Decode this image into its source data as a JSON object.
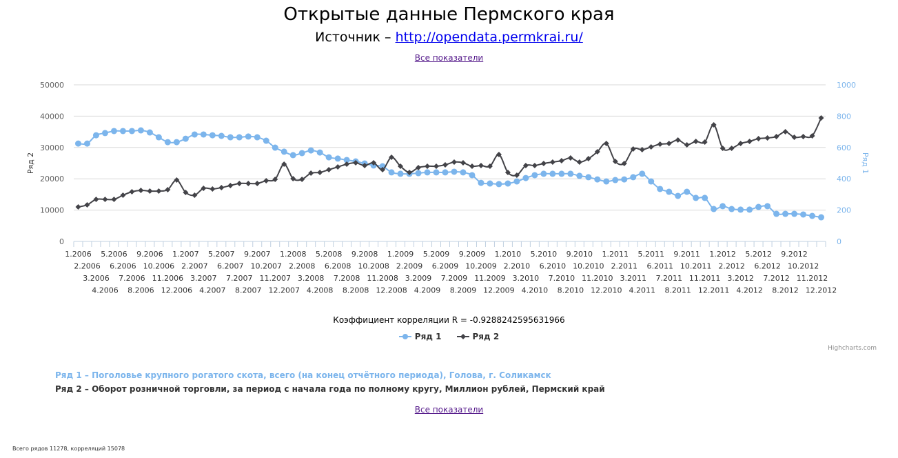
{
  "page": {
    "title": "Открытые данные Пермского края",
    "source_label": "Источник – ",
    "source_link": "http://opendata.permkrai.ru/",
    "all_indicators_top": "Все показатели",
    "all_indicators_bottom": "Все показатели",
    "correlation_text": "Коэффициент корреляции R = -0.9288242595631966",
    "credits": "Highcharts.com",
    "series1_description": "Ряд 1 – Поголовье крупного рогатого скота, всего (на конец отчётного периода), Голова, г. Соликамск",
    "series2_description": "Ряд 2 – Оборот розничной торговли, за период с начала года по полному кругу, Миллион рублей, Пермский край",
    "footer": "Всего рядов 11278, корреляций 15078"
  },
  "colors": {
    "series1": "#7cb5ec",
    "series2": "#434348",
    "grid": "#d8d8d8",
    "axis_labels": "#606060",
    "right_axis_labels": "#7cb5ec"
  },
  "chart_data": {
    "type": "line",
    "title": "",
    "xlabel": "",
    "ylabel": "Ряд 2",
    "ylabel_right": "Ряд 1",
    "ylim": [
      0,
      50000
    ],
    "ylim_right": [
      0,
      1000
    ],
    "yticks": [
      0,
      10000,
      20000,
      30000,
      40000,
      50000
    ],
    "yticks_right": [
      0,
      200,
      400,
      600,
      800,
      1000
    ],
    "grid": true,
    "legend_position": "bottom",
    "categories": [
      "1.2006",
      "2.2006",
      "3.2006",
      "4.2006",
      "5.2006",
      "6.2006",
      "7.2006",
      "8.2006",
      "9.2006",
      "10.2006",
      "11.2006",
      "12.2006",
      "1.2007",
      "2.2007",
      "3.2007",
      "4.2007",
      "5.2007",
      "6.2007",
      "7.2007",
      "8.2007",
      "9.2007",
      "10.2007",
      "11.2007",
      "12.2007",
      "1.2008",
      "2.2008",
      "3.2008",
      "4.2008",
      "5.2008",
      "6.2008",
      "7.2008",
      "8.2008",
      "9.2008",
      "10.2008",
      "11.2008",
      "12.2008",
      "1.2009",
      "2.2009",
      "3.2009",
      "4.2009",
      "5.2009",
      "6.2009",
      "7.2009",
      "8.2009",
      "9.2009",
      "10.2009",
      "11.2009",
      "12.2009",
      "1.2010",
      "2.2010",
      "3.2010",
      "4.2010",
      "5.2010",
      "6.2010",
      "7.2010",
      "8.2010",
      "9.2010",
      "10.2010",
      "11.2010",
      "12.2010",
      "1.2011",
      "2.2011",
      "3.2011",
      "4.2011",
      "5.2011",
      "6.2011",
      "7.2011",
      "8.2011",
      "9.2011",
      "10.2011",
      "11.2011",
      "12.2011",
      "1.2012",
      "2.2012",
      "3.2012",
      "4.2012",
      "5.2012",
      "6.2012",
      "7.2012",
      "8.2012",
      "9.2012",
      "10.2012",
      "11.2012",
      "12.2012"
    ],
    "series": [
      {
        "name": "Ряд 1",
        "axis": "right",
        "marker": "circle",
        "values": [
          625,
          625,
          678,
          692,
          705,
          705,
          705,
          709,
          696,
          665,
          634,
          634,
          656,
          683,
          683,
          678,
          674,
          665,
          665,
          670,
          665,
          643,
          599,
          573,
          551,
          564,
          581,
          568,
          537,
          529,
          520,
          511,
          498,
          485,
          480,
          441,
          432,
          432,
          436,
          441,
          441,
          441,
          445,
          441,
          423,
          374,
          370,
          366,
          370,
          383,
          405,
          423,
          432,
          432,
          432,
          432,
          419,
          410,
          396,
          383,
          392,
          396,
          410,
          432,
          383,
          335,
          317,
          291,
          317,
          278,
          278,
          207,
          225,
          207,
          203,
          203,
          220,
          225,
          176,
          176,
          176,
          172,
          163,
          154
        ]
      },
      {
        "name": "Ряд 2",
        "axis": "left",
        "marker": "diamond",
        "values": [
          11013,
          11674,
          13436,
          13436,
          13436,
          14758,
          15859,
          16300,
          16079,
          16079,
          16520,
          19604,
          15638,
          14758,
          16960,
          16740,
          17180,
          17841,
          18502,
          18502,
          18502,
          19383,
          19824,
          24669,
          20044,
          19824,
          21806,
          22026,
          22907,
          23788,
          24669,
          25110,
          24229,
          25110,
          22907,
          26872,
          24008,
          22026,
          23568,
          24008,
          24008,
          24449,
          25330,
          25110,
          24008,
          24229,
          24008,
          27753,
          22026,
          21145,
          24229,
          24229,
          24889,
          25330,
          25771,
          26652,
          25330,
          26432,
          28634,
          31277,
          25550,
          24889,
          29515,
          29295,
          30176,
          31057,
          31277,
          32378,
          30837,
          31938,
          31718,
          37223,
          29735,
          29735,
          31277,
          31938,
          32819,
          33039,
          33480,
          35022,
          33259,
          33480,
          33700,
          39427
        ]
      }
    ]
  }
}
